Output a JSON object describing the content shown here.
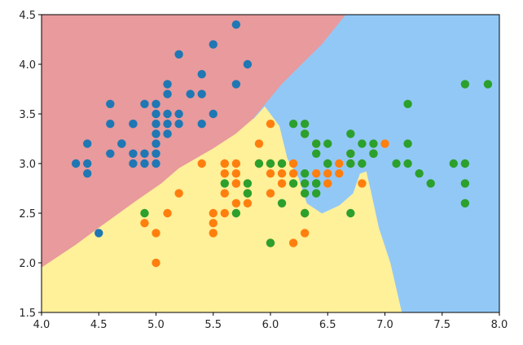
{
  "chart_data": {
    "type": "scatter",
    "title": "",
    "xlabel": "",
    "ylabel": "",
    "xlim": [
      4.0,
      8.0
    ],
    "ylim": [
      1.5,
      4.5
    ],
    "grid": false,
    "legend": "none",
    "x_ticks": [
      4.0,
      4.5,
      5.0,
      5.5,
      6.0,
      6.5,
      7.0,
      7.5,
      8.0
    ],
    "y_ticks": [
      1.5,
      2.0,
      2.5,
      3.0,
      3.5,
      4.0,
      4.5
    ],
    "x_tick_labels": [
      "4.0",
      "4.5",
      "5.0",
      "5.5",
      "6.0",
      "6.5",
      "7.0",
      "7.5",
      "8.0"
    ],
    "y_tick_labels": [
      "1.5",
      "2.0",
      "2.5",
      "3.0",
      "3.5",
      "4.0",
      "4.5"
    ],
    "decision_regions": [
      {
        "color": "#e89a9c",
        "polygon": [
          [
            4.0,
            4.5
          ],
          [
            6.66,
            4.5
          ],
          [
            6.45,
            4.2
          ],
          [
            6.1,
            3.8
          ],
          [
            5.85,
            3.45
          ],
          [
            5.7,
            3.3
          ],
          [
            5.5,
            3.15
          ],
          [
            5.2,
            2.95
          ],
          [
            5.05,
            2.8
          ],
          [
            4.8,
            2.6
          ],
          [
            4.5,
            2.35
          ],
          [
            4.3,
            2.18
          ],
          [
            4.0,
            1.95
          ]
        ]
      },
      {
        "color": "#fff09a",
        "polygon": [
          [
            4.0,
            1.95
          ],
          [
            4.3,
            2.18
          ],
          [
            4.5,
            2.35
          ],
          [
            4.8,
            2.6
          ],
          [
            5.05,
            2.8
          ],
          [
            5.2,
            2.95
          ],
          [
            5.5,
            3.15
          ],
          [
            5.7,
            3.3
          ],
          [
            5.85,
            3.45
          ],
          [
            5.95,
            3.58
          ],
          [
            6.08,
            3.38
          ],
          [
            6.15,
            3.05
          ],
          [
            6.25,
            2.85
          ],
          [
            6.32,
            2.6
          ],
          [
            6.45,
            2.5
          ],
          [
            6.6,
            2.58
          ],
          [
            6.72,
            2.7
          ],
          [
            6.78,
            2.9
          ],
          [
            6.9,
            2.95
          ],
          [
            6.95,
            3.08
          ],
          [
            6.84,
            2.92
          ],
          [
            6.88,
            2.72
          ],
          [
            6.95,
            2.35
          ],
          [
            7.05,
            2.0
          ],
          [
            7.15,
            1.5
          ],
          [
            4.0,
            1.5
          ]
        ]
      },
      {
        "color": "#92c8f6",
        "polygon": [
          [
            6.66,
            4.5
          ],
          [
            8.0,
            4.5
          ],
          [
            8.0,
            1.5
          ],
          [
            7.15,
            1.5
          ],
          [
            7.05,
            2.0
          ],
          [
            6.95,
            2.35
          ],
          [
            6.88,
            2.72
          ],
          [
            6.84,
            2.92
          ],
          [
            6.95,
            3.08
          ],
          [
            6.9,
            2.95
          ],
          [
            6.78,
            2.9
          ],
          [
            6.72,
            2.7
          ],
          [
            6.6,
            2.58
          ],
          [
            6.45,
            2.5
          ],
          [
            6.32,
            2.6
          ],
          [
            6.25,
            2.85
          ],
          [
            6.15,
            3.05
          ],
          [
            6.08,
            3.38
          ],
          [
            5.95,
            3.58
          ],
          [
            5.85,
            3.45
          ],
          [
            6.1,
            3.8
          ],
          [
            6.45,
            4.2
          ]
        ]
      }
    ],
    "series": [
      {
        "color": "#1f77b4",
        "points": [
          [
            5.1,
            3.5
          ],
          [
            4.9,
            3.0
          ],
          [
            4.7,
            3.2
          ],
          [
            4.6,
            3.1
          ],
          [
            5.0,
            3.6
          ],
          [
            5.4,
            3.9
          ],
          [
            4.6,
            3.4
          ],
          [
            5.0,
            3.4
          ],
          [
            4.4,
            2.9
          ],
          [
            4.9,
            3.1
          ],
          [
            5.4,
            3.7
          ],
          [
            4.8,
            3.4
          ],
          [
            4.8,
            3.0
          ],
          [
            4.3,
            3.0
          ],
          [
            5.8,
            4.0
          ],
          [
            5.7,
            4.4
          ],
          [
            5.7,
            3.8
          ],
          [
            5.1,
            3.8
          ],
          [
            5.4,
            3.4
          ],
          [
            5.1,
            3.7
          ],
          [
            5.1,
            3.3
          ],
          [
            4.8,
            3.1
          ],
          [
            5.0,
            3.0
          ],
          [
            5.2,
            3.5
          ],
          [
            5.2,
            3.4
          ],
          [
            4.7,
            3.2
          ],
          [
            5.2,
            4.1
          ],
          [
            5.5,
            4.2
          ],
          [
            5.5,
            3.5
          ],
          [
            4.9,
            3.6
          ],
          [
            4.4,
            3.0
          ],
          [
            5.1,
            3.4
          ],
          [
            5.0,
            3.5
          ],
          [
            4.5,
            2.3
          ],
          [
            4.4,
            3.2
          ],
          [
            5.0,
            3.2
          ],
          [
            5.3,
            3.7
          ],
          [
            5.0,
            3.3
          ],
          [
            4.6,
            3.6
          ],
          [
            5.0,
            3.1
          ],
          [
            4.8,
            3.4
          ]
        ]
      },
      {
        "color": "#ff7f0e",
        "points": [
          [
            7.0,
            3.2
          ],
          [
            6.4,
            3.2
          ],
          [
            6.9,
            3.1
          ],
          [
            5.5,
            2.3
          ],
          [
            6.5,
            2.8
          ],
          [
            5.7,
            2.8
          ],
          [
            6.3,
            3.3
          ],
          [
            4.9,
            2.4
          ],
          [
            6.6,
            2.9
          ],
          [
            5.2,
            2.7
          ],
          [
            5.0,
            2.0
          ],
          [
            5.9,
            3.0
          ],
          [
            6.0,
            2.2
          ],
          [
            6.1,
            2.9
          ],
          [
            5.6,
            2.9
          ],
          [
            6.7,
            3.1
          ],
          [
            5.6,
            3.0
          ],
          [
            5.8,
            2.7
          ],
          [
            6.2,
            2.2
          ],
          [
            5.6,
            2.5
          ],
          [
            5.9,
            3.2
          ],
          [
            6.1,
            2.8
          ],
          [
            6.3,
            2.5
          ],
          [
            6.4,
            2.9
          ],
          [
            6.6,
            3.0
          ],
          [
            6.8,
            2.8
          ],
          [
            6.0,
            2.9
          ],
          [
            5.7,
            2.6
          ],
          [
            5.5,
            2.4
          ],
          [
            5.8,
            2.7
          ],
          [
            6.0,
            2.7
          ],
          [
            5.4,
            3.0
          ],
          [
            6.0,
            3.4
          ],
          [
            6.3,
            2.3
          ],
          [
            5.6,
            3.0
          ],
          [
            5.5,
            2.5
          ],
          [
            6.1,
            3.0
          ],
          [
            5.8,
            2.6
          ],
          [
            5.0,
            2.3
          ],
          [
            5.6,
            2.7
          ],
          [
            5.7,
            3.0
          ],
          [
            5.7,
            2.9
          ],
          [
            6.2,
            2.9
          ],
          [
            5.1,
            2.5
          ],
          [
            5.7,
            2.8
          ],
          [
            6.2,
            3.0
          ],
          [
            6.7,
            3.0
          ],
          [
            6.0,
            3.0
          ],
          [
            6.5,
            2.9
          ]
        ]
      },
      {
        "color": "#2ca02c",
        "points": [
          [
            6.3,
            3.3
          ],
          [
            7.1,
            3.0
          ],
          [
            6.3,
            2.9
          ],
          [
            6.5,
            3.0
          ],
          [
            7.6,
            3.0
          ],
          [
            4.9,
            2.5
          ],
          [
            7.3,
            2.9
          ],
          [
            6.7,
            2.5
          ],
          [
            7.2,
            3.6
          ],
          [
            6.5,
            3.2
          ],
          [
            6.4,
            2.7
          ],
          [
            6.8,
            3.0
          ],
          [
            5.7,
            2.5
          ],
          [
            5.8,
            2.8
          ],
          [
            6.4,
            3.2
          ],
          [
            7.7,
            3.8
          ],
          [
            7.7,
            2.6
          ],
          [
            6.0,
            2.2
          ],
          [
            6.9,
            3.2
          ],
          [
            5.6,
            2.8
          ],
          [
            7.7,
            2.8
          ],
          [
            6.3,
            2.7
          ],
          [
            6.7,
            3.3
          ],
          [
            7.2,
            3.2
          ],
          [
            6.2,
            2.8
          ],
          [
            6.1,
            3.0
          ],
          [
            6.4,
            2.8
          ],
          [
            7.2,
            3.0
          ],
          [
            7.4,
            2.8
          ],
          [
            7.9,
            3.8
          ],
          [
            6.4,
            2.8
          ],
          [
            6.3,
            2.8
          ],
          [
            6.1,
            2.6
          ],
          [
            7.7,
            3.0
          ],
          [
            6.3,
            3.4
          ],
          [
            6.4,
            3.1
          ],
          [
            6.0,
            3.0
          ],
          [
            6.9,
            3.1
          ],
          [
            6.7,
            3.1
          ],
          [
            6.9,
            3.1
          ],
          [
            5.8,
            2.7
          ],
          [
            6.8,
            3.2
          ],
          [
            6.7,
            3.0
          ],
          [
            6.3,
            2.5
          ],
          [
            6.5,
            3.0
          ],
          [
            6.2,
            3.4
          ],
          [
            5.9,
            3.0
          ]
        ]
      }
    ]
  }
}
